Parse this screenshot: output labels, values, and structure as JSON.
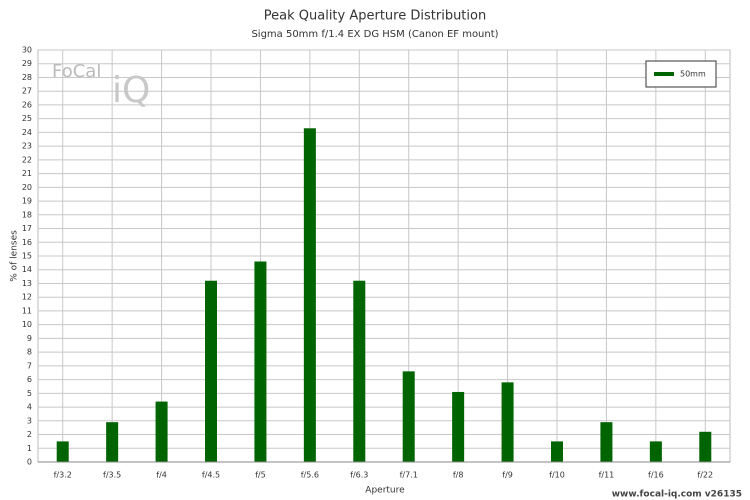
{
  "chart_data": {
    "type": "bar",
    "title": "Peak Quality Aperture Distribution",
    "subtitle": "Sigma 50mm f/1.4 EX DG HSM (Canon EF mount)",
    "x_label": "Aperture",
    "y_label": "% of lenses",
    "categories": [
      "f/3.2",
      "f/3.5",
      "f/4",
      "f/4.5",
      "f/5",
      "f/5.6",
      "f/6.3",
      "f/7.1",
      "f/8",
      "f/9",
      "f/10",
      "f/11",
      "f/16",
      "f/22"
    ],
    "series": [
      {
        "name": "50mm",
        "color": "#006400",
        "values": [
          1.5,
          2.9,
          4.4,
          13.2,
          14.6,
          24.3,
          13.2,
          6.6,
          5.1,
          5.8,
          1.5,
          2.9,
          1.5,
          2.2
        ]
      }
    ],
    "ylim": [
      0,
      30
    ],
    "yticks": [
      0,
      1,
      2,
      3,
      4,
      5,
      6,
      7,
      8,
      9,
      10,
      11,
      12,
      13,
      14,
      15,
      16,
      17,
      18,
      19,
      20,
      21,
      22,
      23,
      24,
      25,
      26,
      27,
      28,
      29,
      30
    ],
    "grid": true,
    "legend": "top-right",
    "logo": {
      "word": "FoCal",
      "mark": "iQ"
    },
    "footer": "www.focal-iq.com  v26135"
  }
}
